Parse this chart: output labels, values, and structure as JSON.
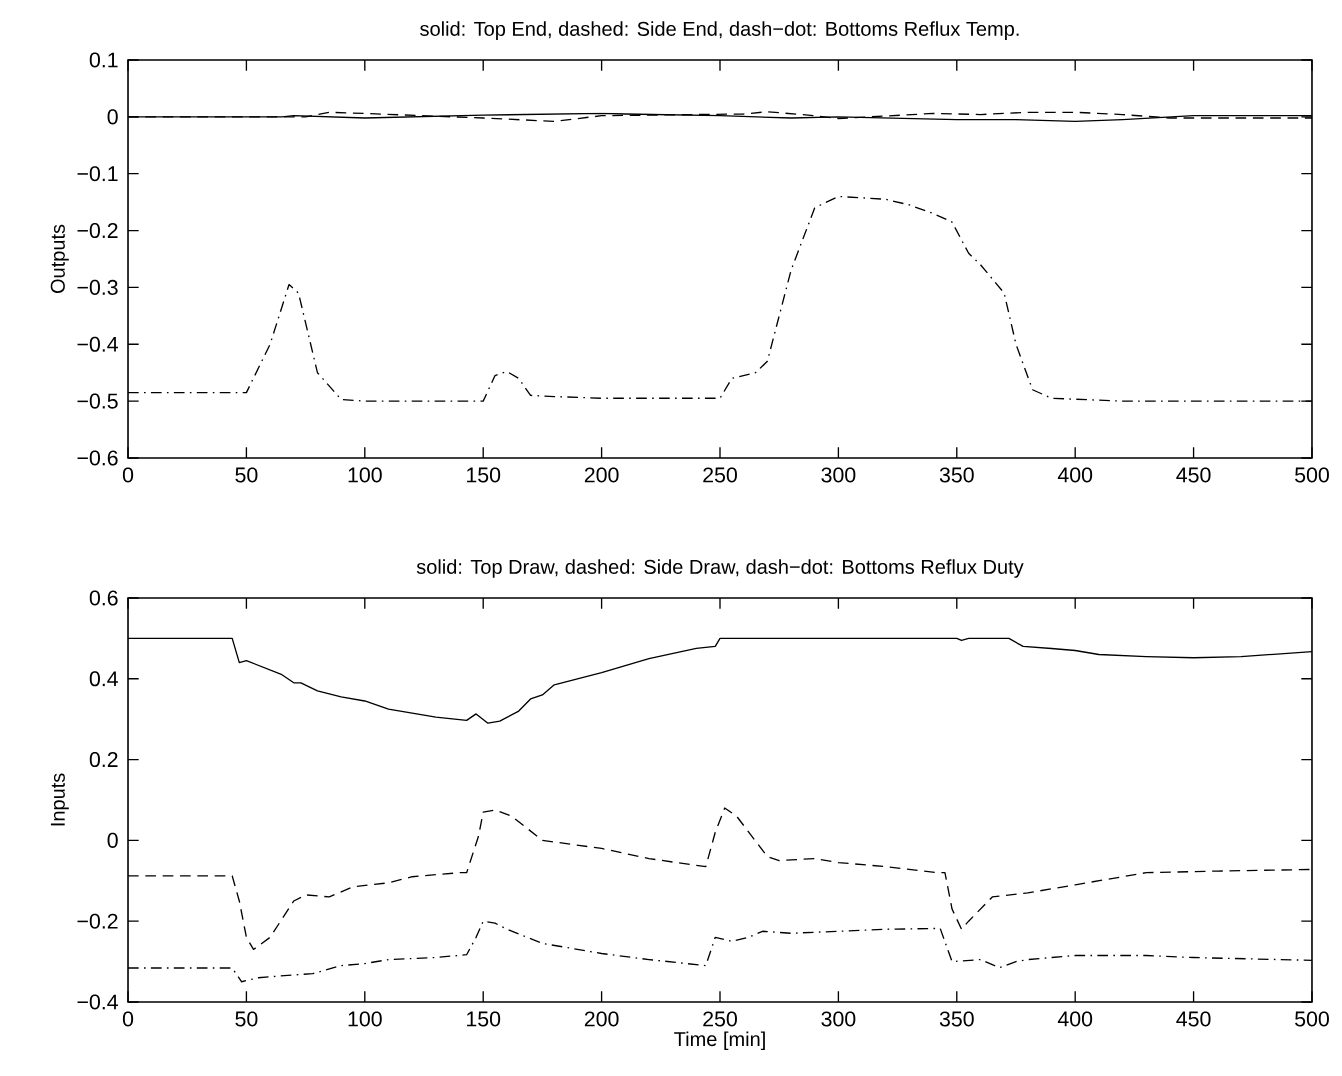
{
  "chart_data": [
    {
      "type": "line",
      "title": "solid: Top End, dashed: Side End, dash−dot: Bottoms Reflux Temp.",
      "ylabel": "Outputs",
      "xlim": [
        0,
        500
      ],
      "ylim": [
        -0.6,
        0.1
      ],
      "xticks": [
        0,
        50,
        100,
        150,
        200,
        250,
        300,
        350,
        400,
        450,
        500
      ],
      "yticks": [
        0.1,
        0,
        {
          "value": -0.1,
          "label": "−0.1"
        },
        {
          "value": -0.2,
          "label": "−0.2"
        },
        {
          "value": -0.3,
          "label": "−0.3"
        },
        {
          "value": -0.4,
          "label": "−0.4"
        },
        {
          "value": -0.5,
          "label": "−0.5"
        },
        {
          "value": -0.6,
          "label": "−0.6"
        }
      ],
      "grid": false,
      "marker": "none",
      "series": [
        {
          "color": "#000000",
          "line_style": "solid",
          "x": [
            0,
            65,
            70,
            100,
            150,
            200,
            210,
            250,
            280,
            300,
            350,
            375,
            400,
            420,
            450,
            500
          ],
          "values": [
            0,
            0,
            0.002,
            -0.002,
            0.003,
            0.006,
            0.005,
            0.002,
            -0.002,
            0,
            -0.005,
            -0.005,
            -0.008,
            -0.005,
            0.002,
            0.002
          ]
        },
        {
          "color": "#000000",
          "line_style": "dashed",
          "x": [
            0,
            75,
            85,
            100,
            150,
            180,
            200,
            260,
            270,
            290,
            300,
            340,
            360,
            380,
            400,
            420,
            440,
            500
          ],
          "values": [
            0,
            0,
            0.008,
            0.006,
            -0.002,
            -0.008,
            0.002,
            0.005,
            0.009,
            0.002,
            -0.003,
            0.006,
            0.004,
            0.008,
            0.008,
            0.004,
            -0.002,
            -0.002
          ]
        },
        {
          "color": "#000000",
          "line_style": "dashdot",
          "x": [
            0,
            50,
            60,
            68,
            72,
            80,
            90,
            100,
            150,
            155,
            160,
            165,
            170,
            180,
            200,
            250,
            255,
            265,
            270,
            280,
            290,
            300,
            320,
            330,
            340,
            348,
            355,
            360,
            370,
            375,
            382,
            390,
            420,
            500
          ],
          "values": [
            -0.485,
            -0.485,
            -0.4,
            -0.295,
            -0.31,
            -0.45,
            -0.497,
            -0.5,
            -0.5,
            -0.455,
            -0.448,
            -0.46,
            -0.49,
            -0.492,
            -0.495,
            -0.495,
            -0.46,
            -0.45,
            -0.43,
            -0.27,
            -0.16,
            -0.14,
            -0.145,
            -0.155,
            -0.17,
            -0.185,
            -0.24,
            -0.26,
            -0.31,
            -0.4,
            -0.48,
            -0.495,
            -0.5,
            -0.5
          ]
        }
      ]
    },
    {
      "type": "line",
      "title": "solid: Top Draw, dashed: Side Draw, dash−dot: Bottoms Reflux Duty",
      "ylabel": "Inputs",
      "xlabel": "Time [min]",
      "xlim": [
        0,
        500
      ],
      "ylim": [
        -0.4,
        0.6
      ],
      "xticks": [
        0,
        50,
        100,
        150,
        200,
        250,
        300,
        350,
        400,
        450,
        500
      ],
      "yticks": [
        {
          "value": -0.4,
          "label": "−0.4"
        },
        {
          "value": -0.2,
          "label": "−0.2"
        },
        0,
        0.2,
        0.4,
        0.6
      ],
      "grid": false,
      "marker": "none",
      "series": [
        {
          "color": "#000000",
          "line_style": "solid",
          "x": [
            0,
            44,
            47,
            50,
            65,
            70,
            73,
            80,
            90,
            100,
            110,
            130,
            143,
            147,
            152,
            157,
            165,
            170,
            175,
            180,
            200,
            220,
            240,
            248,
            250,
            260,
            350,
            352,
            355,
            372,
            378,
            390,
            400,
            410,
            430,
            450,
            470,
            500
          ],
          "values": [
            0.5,
            0.5,
            0.44,
            0.445,
            0.41,
            0.39,
            0.39,
            0.37,
            0.355,
            0.345,
            0.325,
            0.305,
            0.297,
            0.313,
            0.29,
            0.295,
            0.32,
            0.35,
            0.36,
            0.385,
            0.415,
            0.45,
            0.475,
            0.48,
            0.5,
            0.5,
            0.5,
            0.495,
            0.5,
            0.5,
            0.48,
            0.475,
            0.47,
            0.46,
            0.455,
            0.452,
            0.455,
            0.467
          ]
        },
        {
          "color": "#000000",
          "line_style": "dashed",
          "x": [
            0,
            44,
            47,
            50,
            53,
            60,
            70,
            75,
            85,
            95,
            110,
            120,
            140,
            143,
            148,
            150,
            155,
            162,
            175,
            200,
            220,
            240,
            244,
            248,
            252,
            257,
            270,
            275,
            290,
            300,
            320,
            342,
            345,
            348,
            352,
            355,
            365,
            380,
            400,
            420,
            430,
            460,
            500
          ],
          "values": [
            -0.088,
            -0.088,
            -0.15,
            -0.24,
            -0.27,
            -0.24,
            -0.15,
            -0.135,
            -0.14,
            -0.115,
            -0.105,
            -0.09,
            -0.08,
            -0.08,
            0.01,
            0.07,
            0.075,
            0.06,
            0,
            -0.02,
            -0.045,
            -0.062,
            -0.065,
            0.02,
            0.08,
            0.06,
            -0.04,
            -0.05,
            -0.045,
            -0.055,
            -0.065,
            -0.08,
            -0.08,
            -0.17,
            -0.22,
            -0.2,
            -0.14,
            -0.13,
            -0.11,
            -0.09,
            -0.08,
            -0.076,
            -0.072
          ]
        },
        {
          "color": "#000000",
          "line_style": "dashdot",
          "x": [
            0,
            44,
            48,
            55,
            70,
            78,
            90,
            100,
            110,
            130,
            143,
            147,
            150,
            155,
            160,
            175,
            200,
            220,
            244,
            248,
            255,
            262,
            268,
            280,
            300,
            320,
            343,
            348,
            360,
            368,
            375,
            380,
            400,
            430,
            450,
            500
          ],
          "values": [
            -0.316,
            -0.316,
            -0.35,
            -0.34,
            -0.333,
            -0.33,
            -0.31,
            -0.305,
            -0.295,
            -0.29,
            -0.283,
            -0.24,
            -0.2,
            -0.205,
            -0.22,
            -0.255,
            -0.28,
            -0.295,
            -0.31,
            -0.24,
            -0.25,
            -0.24,
            -0.225,
            -0.23,
            -0.225,
            -0.22,
            -0.218,
            -0.3,
            -0.295,
            -0.315,
            -0.3,
            -0.295,
            -0.285,
            -0.285,
            -0.29,
            -0.297
          ]
        }
      ]
    }
  ]
}
